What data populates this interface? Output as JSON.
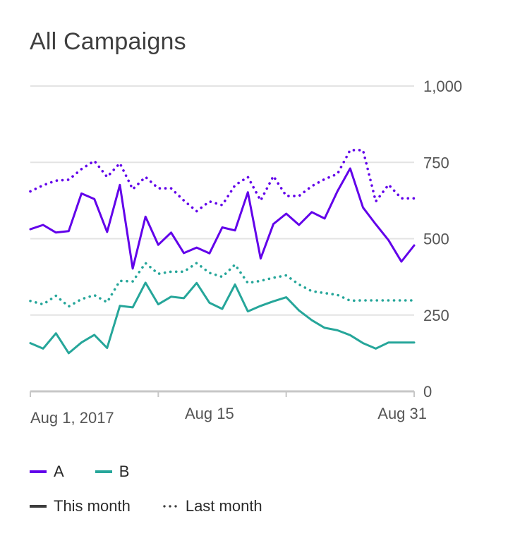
{
  "title": "All Campaigns",
  "colors": {
    "series_a": "#6200ea",
    "series_b": "#26a69a",
    "grid": "#e3e3e3",
    "axis": "#c7c7c7",
    "legend_line": "#3c3c3c"
  },
  "legend": {
    "series": [
      {
        "label": "A",
        "color": "#6200ea"
      },
      {
        "label": "B",
        "color": "#26a69a"
      }
    ],
    "styles": [
      {
        "label": "This month",
        "style": "solid"
      },
      {
        "label": "Last month",
        "style": "dotted"
      }
    ]
  },
  "chart_data": {
    "type": "line",
    "title": "All Campaigns",
    "xlabel": "",
    "ylabel": "",
    "x_tick_labels": [
      {
        "day": 1,
        "label": "Aug 1, 2017"
      },
      {
        "day": 15,
        "label": "Aug 15"
      },
      {
        "day": 31,
        "label": "Aug 31"
      }
    ],
    "x_minor_ticks": [
      1,
      11,
      21,
      31
    ],
    "xlim": [
      1,
      31
    ],
    "ylim": [
      0,
      1000
    ],
    "y_ticks": [
      {
        "value": 0,
        "label": "0"
      },
      {
        "value": 250,
        "label": "250"
      },
      {
        "value": 500,
        "label": "500"
      },
      {
        "value": 750,
        "label": "750"
      },
      {
        "value": 1000,
        "label": "1,000"
      }
    ],
    "y_axis_position": "right",
    "grid": true,
    "legend_position": "bottom-left",
    "series": [
      {
        "group": "A",
        "period": "This month",
        "style": "solid",
        "x": [
          1,
          2,
          3,
          4,
          5,
          6,
          7,
          8,
          9,
          10,
          11,
          12,
          13,
          14,
          15,
          16,
          17,
          18,
          19,
          20,
          21,
          22,
          23,
          24,
          25,
          26,
          27,
          28,
          29,
          30,
          31
        ],
        "values": [
          531,
          545,
          520,
          525,
          648,
          630,
          522,
          676,
          402,
          572,
          480,
          520,
          453,
          471,
          452,
          537,
          527,
          652,
          435,
          548,
          582,
          545,
          587,
          566,
          655,
          730,
          602,
          547,
          495,
          425,
          478
        ]
      },
      {
        "group": "A",
        "period": "Last month",
        "style": "dotted",
        "x": [
          1,
          2,
          3,
          4,
          5,
          6,
          7,
          8,
          9,
          10,
          11,
          12,
          13,
          14,
          15,
          16,
          17,
          18,
          19,
          20,
          21,
          22,
          23,
          24,
          25,
          26,
          27,
          28,
          29,
          30,
          31
        ],
        "values": [
          655,
          675,
          690,
          693,
          728,
          755,
          702,
          747,
          662,
          702,
          665,
          665,
          625,
          590,
          622,
          610,
          675,
          702,
          625,
          705,
          640,
          640,
          672,
          695,
          712,
          790,
          790,
          622,
          677,
          632,
          632
        ]
      },
      {
        "group": "B",
        "period": "This month",
        "style": "solid",
        "x": [
          1,
          2,
          3,
          4,
          5,
          6,
          7,
          8,
          9,
          10,
          11,
          12,
          13,
          14,
          15,
          16,
          17,
          18,
          19,
          20,
          21,
          22,
          23,
          24,
          25,
          26,
          27,
          28,
          29,
          30,
          31
        ],
        "values": [
          158,
          140,
          190,
          125,
          160,
          185,
          142,
          280,
          275,
          356,
          285,
          310,
          305,
          355,
          290,
          270,
          350,
          262,
          280,
          295,
          308,
          265,
          233,
          208,
          200,
          184,
          158,
          140,
          160,
          160,
          160
        ]
      },
      {
        "group": "B",
        "period": "Last month",
        "style": "dotted",
        "x": [
          1,
          2,
          3,
          4,
          5,
          6,
          7,
          8,
          9,
          10,
          11,
          12,
          13,
          14,
          15,
          16,
          17,
          18,
          19,
          20,
          21,
          22,
          23,
          24,
          25,
          26,
          27,
          28,
          29,
          30,
          31
        ],
        "values": [
          296,
          285,
          313,
          278,
          302,
          315,
          292,
          362,
          360,
          420,
          385,
          392,
          392,
          420,
          388,
          375,
          415,
          355,
          362,
          372,
          380,
          350,
          328,
          322,
          316,
          297,
          298,
          298,
          298,
          298,
          298
        ]
      }
    ]
  }
}
